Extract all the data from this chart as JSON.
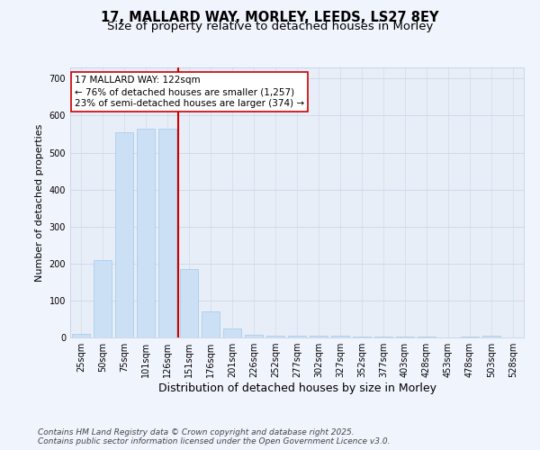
{
  "title_line1": "17, MALLARD WAY, MORLEY, LEEDS, LS27 8EY",
  "title_line2": "Size of property relative to detached houses in Morley",
  "xlabel": "Distribution of detached houses by size in Morley",
  "ylabel": "Number of detached properties",
  "bar_labels": [
    "25sqm",
    "50sqm",
    "75sqm",
    "101sqm",
    "126sqm",
    "151sqm",
    "176sqm",
    "201sqm",
    "226sqm",
    "252sqm",
    "277sqm",
    "302sqm",
    "327sqm",
    "352sqm",
    "377sqm",
    "403sqm",
    "428sqm",
    "453sqm",
    "478sqm",
    "503sqm",
    "528sqm"
  ],
  "bar_values": [
    10,
    210,
    555,
    565,
    565,
    185,
    70,
    25,
    8,
    5,
    5,
    6,
    4,
    2,
    3,
    2,
    2,
    1,
    2,
    4,
    1
  ],
  "bar_color": "#cce0f5",
  "bar_edge_color": "#a0c8e8",
  "grid_color": "#d0daea",
  "background_color": "#e8eef8",
  "fig_background_color": "#f0f4fc",
  "vline_x": 4.5,
  "vline_color": "#cc0000",
  "annotation_text": "17 MALLARD WAY: 122sqm\n← 76% of detached houses are smaller (1,257)\n23% of semi-detached houses are larger (374) →",
  "annotation_box_color": "#ffffff",
  "annotation_border_color": "#cc0000",
  "ylim": [
    0,
    730
  ],
  "yticks": [
    0,
    100,
    200,
    300,
    400,
    500,
    600,
    700
  ],
  "footer_line1": "Contains HM Land Registry data © Crown copyright and database right 2025.",
  "footer_line2": "Contains public sector information licensed under the Open Government Licence v3.0.",
  "title1_fontsize": 10.5,
  "title2_fontsize": 9.5,
  "xlabel_fontsize": 9,
  "ylabel_fontsize": 8,
  "tick_fontsize": 7,
  "annotation_fontsize": 7.5,
  "footer_fontsize": 6.5
}
